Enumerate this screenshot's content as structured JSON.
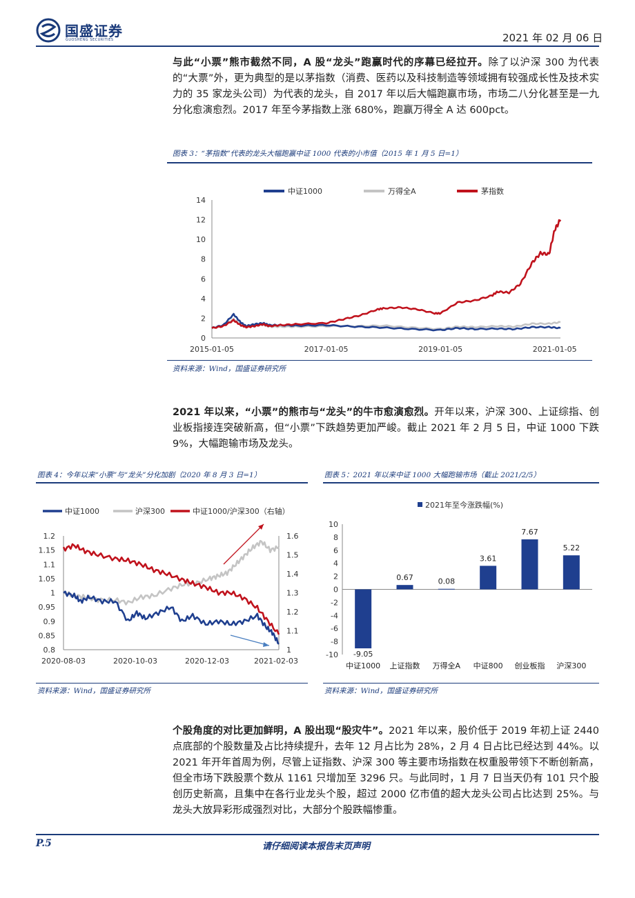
{
  "header": {
    "brand": "国盛证券",
    "brand_en": "GUOSHENG SECURITIES",
    "date": "2021 年 02 月 06 日"
  },
  "para1": {
    "bold": "与此“小票”熊市截然不同，A 股“龙头”跑赢时代的序幕已经拉开。",
    "text": "除了以沪深 300 为代表的“大票”外，更为典型的是以茅指数（消费、医药以及科技制造等领域拥有较强成长性及技术实力的 35 家龙头公司）为代表的龙头，自 2017 年以后大幅跑赢市场，市场二八分化甚至是一九分化愈演愈烈。2017 年至今茅指数上涨 680%，跑赢万得全 A 达 600pct。"
  },
  "fig3": {
    "title": "图表 3：“茅指数”代表的龙头大幅跑赢中证 1000 代表的小市值（2015 年 1 月 5 日=1）",
    "source": "资料来源：Wind，国盛证券研究所"
  },
  "para2": {
    "bold": "2021 年以来，“小票”的熊市与“龙头”的牛市愈演愈烈。",
    "text": "开年以来，沪深 300、上证综指、创业板指接连突破新高，但“小票”下跌趋势更加严峻。截止 2021 年 2 月 5 日，中证 1000 下跌 9%，大幅跑输市场及龙头。"
  },
  "fig4": {
    "title": "图表 4：今年以来“小票”与“龙头”分化加剧（2020 年 8 月 3 日=1）",
    "source": "资料来源：Wind，国盛证券研究所"
  },
  "fig5": {
    "title": "图表 5：2021 年以来中证 1000 大幅跑输市场（截止 2021/2/5）",
    "source": "资料来源：Wind，国盛证券研究所"
  },
  "para3": {
    "bold": "个股角度的对比更加鲜明，A 股出现“股灾牛”。",
    "text": "2021 年以来，股价低于 2019 年初上证 2440 点底部的个股数量及占比持续提升，去年 12 月占比为 28%，2 月 4 日占比已经达到 44%。以 2021 年开年首周为例，尽管上证指数、沪深 300 等主要市场指数在权重股带领下不断创新高，但全市场下跌股票个数从 1161 只增加至 3296 只。与此同时，1 月 7 日当天仍有 101 只个股创历史新高，且集中在各行业龙头个股，超过 2000 亿市值的超大龙头公司占比达到 25%。与龙头大放异彩形成强烈对比，大部分个股跌幅惨重。"
  },
  "footer": {
    "page": "P.5",
    "notice": "请仔细阅读本报告末页声明"
  },
  "colors": {
    "navy": "#1f3f8f",
    "gray": "#c4c4c4",
    "red": "#c0121c"
  },
  "chart_data": [
    {
      "type": "line",
      "title": "“茅指数”代表的龙头大幅跑赢中证 1000 代表的小市值（2015 年 1 月 5 日=1）",
      "legend": [
        "中证1000",
        "万得全A",
        "茅指数"
      ],
      "x_ticks": [
        "2015-01-05",
        "2017-01-05",
        "2019-01-05",
        "2021-01-05"
      ],
      "ylim": [
        0,
        14
      ],
      "y_ticks": [
        0,
        2,
        4,
        6,
        8,
        10,
        12,
        14
      ],
      "x_range": [
        2015.0,
        2021.1
      ],
      "series": [
        {
          "name": "中证1000",
          "x": [
            2015.0,
            2015.2,
            2015.38,
            2015.5,
            2015.6,
            2015.75,
            2015.9,
            2016.0,
            2016.2,
            2016.5,
            2017.0,
            2017.5,
            2018.0,
            2018.5,
            2019.0,
            2019.3,
            2019.6,
            2020.0,
            2020.3,
            2020.6,
            2020.9,
            2021.1
          ],
          "values": [
            1.0,
            1.3,
            2.4,
            1.6,
            1.2,
            1.4,
            1.5,
            1.3,
            1.3,
            1.25,
            1.3,
            1.15,
            1.05,
            0.9,
            0.8,
            1.0,
            0.9,
            0.95,
            0.9,
            1.1,
            1.1,
            1.0
          ]
        },
        {
          "name": "万得全A",
          "x": [
            2015.0,
            2015.2,
            2015.38,
            2015.5,
            2015.6,
            2015.75,
            2015.9,
            2016.0,
            2016.2,
            2016.5,
            2017.0,
            2017.5,
            2018.0,
            2018.5,
            2019.0,
            2019.3,
            2019.6,
            2020.0,
            2020.3,
            2020.6,
            2020.9,
            2021.1
          ],
          "values": [
            1.0,
            1.3,
            1.9,
            1.4,
            1.2,
            1.3,
            1.35,
            1.15,
            1.15,
            1.15,
            1.2,
            1.2,
            1.25,
            1.05,
            0.9,
            1.15,
            1.1,
            1.2,
            1.15,
            1.45,
            1.45,
            1.6
          ]
        },
        {
          "name": "茅指数",
          "x": [
            2015.0,
            2015.2,
            2015.38,
            2015.5,
            2015.6,
            2015.75,
            2015.9,
            2016.0,
            2016.2,
            2016.5,
            2017.0,
            2017.3,
            2017.6,
            2017.9,
            2018.0,
            2018.3,
            2018.6,
            2018.9,
            2019.0,
            2019.3,
            2019.6,
            2019.9,
            2020.0,
            2020.2,
            2020.4,
            2020.6,
            2020.75,
            2020.9,
            2021.0,
            2021.1
          ],
          "values": [
            1.0,
            1.2,
            1.8,
            1.3,
            1.1,
            1.2,
            1.4,
            1.2,
            1.3,
            1.4,
            1.5,
            1.9,
            2.3,
            2.9,
            3.0,
            3.1,
            2.9,
            2.5,
            2.5,
            3.6,
            3.8,
            4.3,
            4.7,
            4.6,
            5.5,
            7.6,
            8.6,
            8.5,
            11.0,
            12.0
          ]
        }
      ]
    },
    {
      "type": "line",
      "title": "今年以来“小票”与“龙头”分化加剧（2020 年 8 月 3 日=1）",
      "legend": [
        "中证1000",
        "沪深300",
        "中证1000/沪深300（右轴）"
      ],
      "x_ticks": [
        "2020-08-03",
        "2020-10-03",
        "2020-12-03",
        "2021-02-03"
      ],
      "ylim_left": [
        0.8,
        1.2
      ],
      "y_ticks_left": [
        "0.8",
        "0.85",
        "0.9",
        "0.95",
        "1",
        "1.05",
        "1.1",
        "1.15",
        "1.2"
      ],
      "ylim_right": [
        1,
        1.6
      ],
      "y_ticks_right": [
        "1",
        "1.1",
        "1.2",
        "1.3",
        "1.4",
        "1.5",
        "1.6"
      ],
      "x_range": [
        0,
        1
      ],
      "series": [
        {
          "name": "中证1000",
          "axis": "left",
          "x": [
            0,
            0.05,
            0.08,
            0.12,
            0.18,
            0.24,
            0.3,
            0.34,
            0.38,
            0.44,
            0.5,
            0.55,
            0.6,
            0.66,
            0.72,
            0.78,
            0.84,
            0.9,
            0.94,
            0.97,
            1.0
          ],
          "values": [
            1.0,
            0.99,
            0.97,
            0.985,
            0.97,
            0.97,
            0.9,
            0.93,
            0.91,
            0.93,
            0.95,
            0.9,
            0.92,
            0.89,
            0.9,
            0.89,
            0.9,
            0.92,
            0.88,
            0.86,
            0.82
          ]
        },
        {
          "name": "沪深300",
          "axis": "left",
          "x": [
            0,
            0.05,
            0.1,
            0.16,
            0.24,
            0.3,
            0.36,
            0.42,
            0.5,
            0.56,
            0.62,
            0.68,
            0.72,
            0.76,
            0.8,
            0.84,
            0.88,
            0.92,
            0.96,
            1.0
          ],
          "values": [
            1.0,
            0.99,
            0.985,
            0.975,
            0.975,
            0.965,
            0.985,
            0.99,
            1.015,
            1.03,
            1.035,
            1.05,
            1.06,
            1.07,
            1.1,
            1.13,
            1.16,
            1.18,
            1.15,
            1.16
          ]
        },
        {
          "name": "中证1000/沪深300（右轴）",
          "axis": "right",
          "x": [
            0,
            0.05,
            0.1,
            0.16,
            0.24,
            0.3,
            0.36,
            0.42,
            0.48,
            0.55,
            0.6,
            0.66,
            0.72,
            0.78,
            0.84,
            0.9,
            0.95,
            1.0
          ],
          "values": [
            1.53,
            1.55,
            1.52,
            1.5,
            1.48,
            1.47,
            1.45,
            1.42,
            1.4,
            1.37,
            1.35,
            1.33,
            1.3,
            1.3,
            1.27,
            1.22,
            1.15,
            1.08
          ]
        }
      ]
    },
    {
      "type": "bar",
      "title": "2021 年以来中证 1000 大幅跑输市场（截止 2021/2/5）",
      "legend": [
        "2021年至今涨跌幅(%)"
      ],
      "categories": [
        "中证1000",
        "上证指数",
        "万得全A",
        "中证800",
        "创业板指",
        "沪深300"
      ],
      "values": [
        -9.05,
        0.67,
        0.08,
        3.61,
        7.67,
        5.22
      ],
      "value_labels": [
        "-9.05",
        "0.67",
        "0.08",
        "3.61",
        "7.67",
        "5.22"
      ],
      "ylim": [
        -10,
        10
      ],
      "y_ticks": [
        -10,
        -8,
        -6,
        -4,
        -2,
        0,
        2,
        4,
        6,
        8,
        10
      ]
    }
  ]
}
